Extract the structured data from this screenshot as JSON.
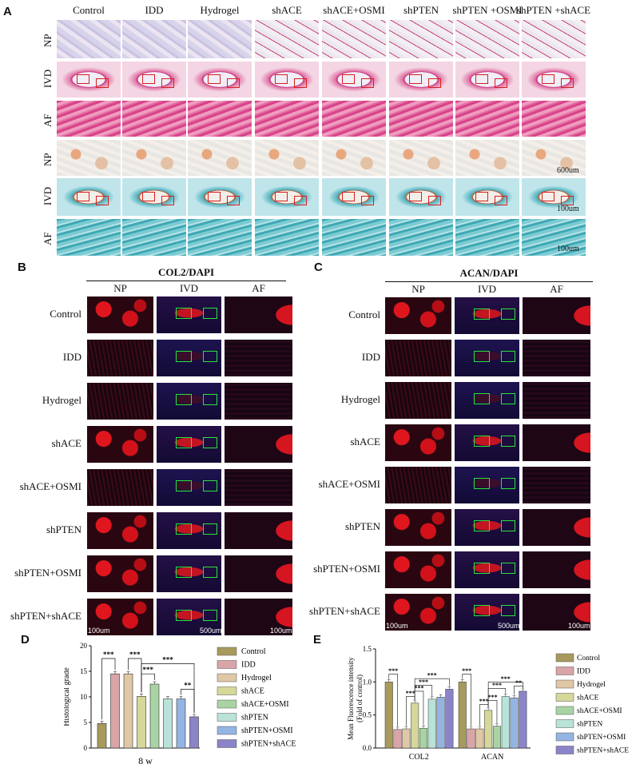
{
  "panels": {
    "a": "A",
    "b": "B",
    "c": "C",
    "d": "D",
    "e": "E"
  },
  "panel_a": {
    "columns": [
      "Control",
      "IDD",
      "Hydrogel",
      "shACE",
      "shACE+OSMI",
      "shPTEN",
      "shPTEN +OSMI",
      "shPTEN +shACE"
    ],
    "rows": [
      "NP",
      "IVD",
      "AF",
      "NP",
      "IVD",
      "AF"
    ],
    "scales": [
      "600um",
      "100um",
      "100um"
    ]
  },
  "panel_b": {
    "title": "COL2/DAPI",
    "columns": [
      "NP",
      "IVD",
      "AF"
    ],
    "groups": [
      "Control",
      "IDD",
      "Hydrogel",
      "shACE",
      "shACE+OSMI",
      "shPTEN",
      "shPTEN+OSMI",
      "shPTEN+shACE"
    ],
    "scales": [
      "100um",
      "500um",
      "100um"
    ]
  },
  "panel_c": {
    "title": "ACAN/DAPI",
    "columns": [
      "NP",
      "IVD",
      "AF"
    ],
    "groups": [
      "Control",
      "IDD",
      "Hydrogel",
      "shACE",
      "shACE+OSMI",
      "shPTEN",
      "shPTEN+OSMI",
      "shPTEN+shACE"
    ],
    "scales": [
      "100um",
      "500um",
      "100um"
    ]
  },
  "legend": [
    "Control",
    "IDD",
    "Hydrogel",
    "shACE",
    "shACE+OSMI",
    "shPTEN",
    "shPTEN+OSMI",
    "shPTEN+shACE"
  ],
  "colors": [
    "#a79a5c",
    "#d9a5a8",
    "#e0c7a6",
    "#d6d89a",
    "#a9d3a5",
    "#b9e3d8",
    "#94b4e3",
    "#8a84c8"
  ],
  "chart_data": [
    {
      "type": "bar",
      "categories": [
        "8 w"
      ],
      "series": [
        {
          "name": "Control",
          "values": [
            4.8
          ]
        },
        {
          "name": "IDD",
          "values": [
            14.5
          ]
        },
        {
          "name": "Hydrogel",
          "values": [
            14.5
          ]
        },
        {
          "name": "shACE",
          "values": [
            10.1
          ]
        },
        {
          "name": "shACE+OSMI",
          "values": [
            12.5
          ]
        },
        {
          "name": "shPTEN",
          "values": [
            9.6
          ]
        },
        {
          "name": "shPTEN+OSMI",
          "values": [
            9.6
          ]
        },
        {
          "name": "shPTEN+shACE",
          "values": [
            6.1
          ]
        }
      ],
      "xlabel": "8 w",
      "ylabel": "Histological grade",
      "ylim": [
        0,
        20
      ],
      "yticks": [
        0,
        5,
        10,
        15,
        20
      ],
      "significance": [
        "***",
        "***",
        "***",
        "***",
        "**"
      ]
    },
    {
      "type": "bar",
      "categories": [
        "COL2",
        "ACAN"
      ],
      "series": [
        {
          "name": "Control",
          "values": [
            1.0,
            1.0
          ]
        },
        {
          "name": "IDD",
          "values": [
            0.28,
            0.29
          ]
        },
        {
          "name": "Hydrogel",
          "values": [
            0.29,
            0.29
          ]
        },
        {
          "name": "shACE",
          "values": [
            0.68,
            0.57
          ]
        },
        {
          "name": "shACE+OSMI",
          "values": [
            0.3,
            0.33
          ]
        },
        {
          "name": "shPTEN",
          "values": [
            0.74,
            0.78
          ]
        },
        {
          "name": "shPTEN+OSMI",
          "values": [
            0.77,
            0.76
          ]
        },
        {
          "name": "shPTEN+shACE",
          "values": [
            0.89,
            0.86
          ]
        }
      ],
      "ylabel": "Mean Fluorescence intensity (Fold of control)",
      "ylabel_lines": [
        "Mean Fluorescence intensity",
        "(Fold of control)"
      ],
      "ylim": [
        0.0,
        1.5
      ],
      "yticks": [
        "0.0",
        "0.5",
        "1.0",
        "1.5"
      ],
      "significance": [
        "***",
        "***",
        "***",
        "***",
        "***",
        "***",
        "***",
        "***",
        "***",
        "***",
        "**"
      ]
    }
  ]
}
